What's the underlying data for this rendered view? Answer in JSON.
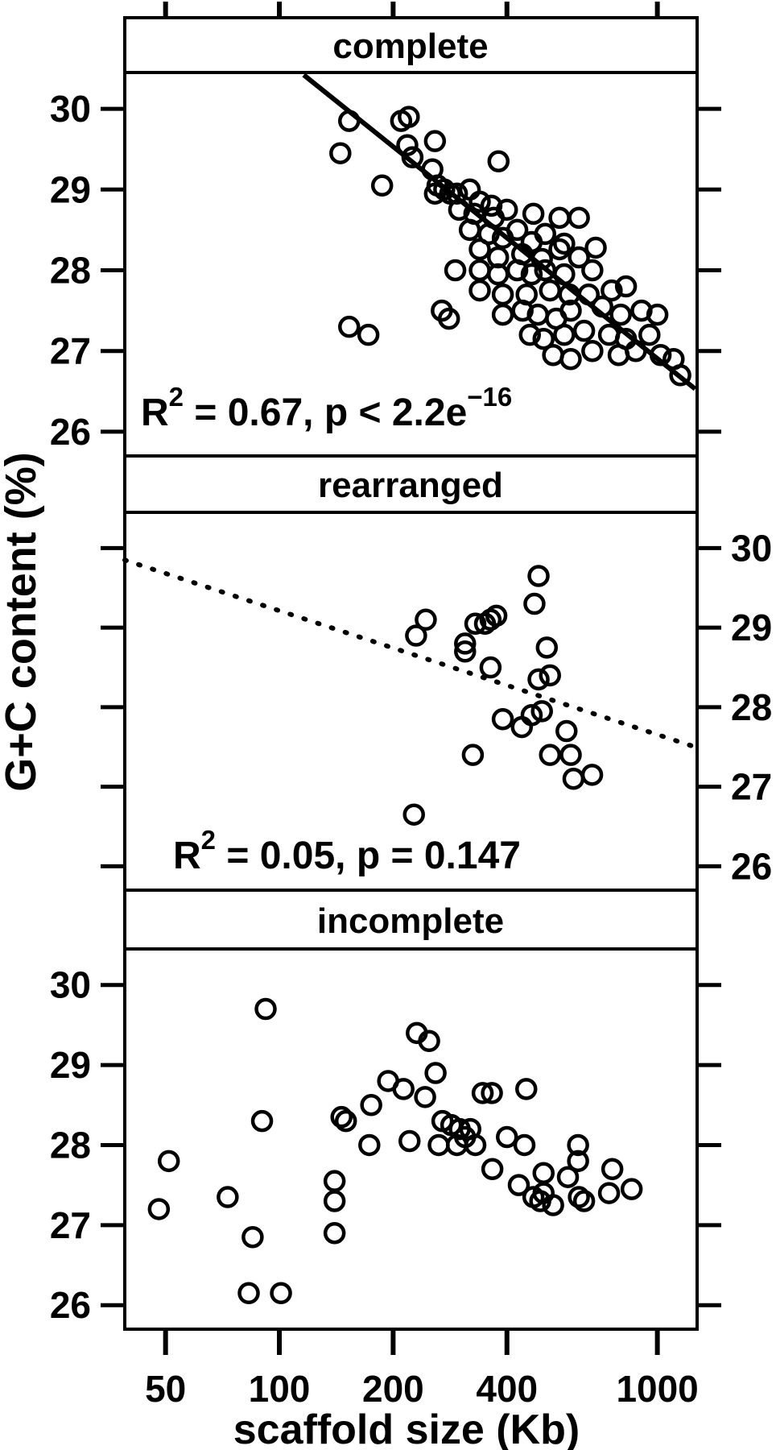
{
  "figure": {
    "x_axis_title": "scaffold size (Kb)",
    "y_axis_title": "G+C content (%)",
    "x_scale": "log",
    "x_ticks": [
      50,
      100,
      200,
      400,
      1000
    ],
    "y_ticks": [
      26,
      27,
      28,
      29,
      30
    ],
    "x_domain": [
      39,
      1274
    ],
    "y_domain": [
      25.7,
      30.45
    ],
    "colors": {
      "fg": "#000000",
      "bg": "#ffffff"
    }
  },
  "chart_data": [
    {
      "type": "scatter",
      "strip_label": "complete",
      "y_labels_side": "left",
      "annotation_text": "R2 = 0.67, p < 2.2e-16",
      "annotation_parts": [
        {
          "t": "R"
        },
        {
          "t": "2",
          "sup": true
        },
        {
          "t": " = 0.67, p < 2.2e"
        },
        {
          "t": "−16",
          "sup": true
        }
      ],
      "regression_line": {
        "style": "solid",
        "from": [
          116,
          30.42
        ],
        "to": [
          1259,
          26.53
        ]
      },
      "points": [
        [
          153,
          29.85
        ],
        [
          210,
          29.85
        ],
        [
          220,
          29.9
        ],
        [
          145,
          29.45
        ],
        [
          218,
          29.55
        ],
        [
          225,
          29.4
        ],
        [
          258,
          29.6
        ],
        [
          380,
          29.35
        ],
        [
          187,
          29.05
        ],
        [
          254,
          29.25
        ],
        [
          262,
          29.05
        ],
        [
          273,
          29.0
        ],
        [
          295,
          28.95
        ],
        [
          319,
          29.0
        ],
        [
          258,
          28.95
        ],
        [
          283,
          28.95
        ],
        [
          339,
          28.85
        ],
        [
          364,
          28.8
        ],
        [
          299,
          28.75
        ],
        [
          328,
          28.7
        ],
        [
          369,
          28.65
        ],
        [
          400,
          28.75
        ],
        [
          470,
          28.7
        ],
        [
          551,
          28.65
        ],
        [
          620,
          28.65
        ],
        [
          319,
          28.5
        ],
        [
          358,
          28.45
        ],
        [
          390,
          28.4
        ],
        [
          426,
          28.5
        ],
        [
          465,
          28.35
        ],
        [
          505,
          28.45
        ],
        [
          567,
          28.33
        ],
        [
          339,
          28.26
        ],
        [
          379,
          28.16
        ],
        [
          439,
          28.2
        ],
        [
          495,
          28.14
        ],
        [
          551,
          28.26
        ],
        [
          620,
          28.16
        ],
        [
          687,
          28.28
        ],
        [
          292,
          28.0
        ],
        [
          339,
          28.0
        ],
        [
          379,
          27.95
        ],
        [
          426,
          28.0
        ],
        [
          465,
          27.95
        ],
        [
          505,
          28.0
        ],
        [
          567,
          27.95
        ],
        [
          673,
          28.0
        ],
        [
          339,
          27.75
        ],
        [
          390,
          27.7
        ],
        [
          451,
          27.7
        ],
        [
          520,
          27.75
        ],
        [
          585,
          27.7
        ],
        [
          658,
          27.7
        ],
        [
          757,
          27.75
        ],
        [
          826,
          27.8
        ],
        [
          269,
          27.5
        ],
        [
          281,
          27.4
        ],
        [
          390,
          27.45
        ],
        [
          440,
          27.5
        ],
        [
          483,
          27.45
        ],
        [
          540,
          27.4
        ],
        [
          590,
          27.5
        ],
        [
          715,
          27.55
        ],
        [
          800,
          27.45
        ],
        [
          153,
          27.3
        ],
        [
          172,
          27.2
        ],
        [
          460,
          27.2
        ],
        [
          500,
          27.15
        ],
        [
          567,
          27.2
        ],
        [
          640,
          27.25
        ],
        [
          745,
          27.2
        ],
        [
          826,
          27.15
        ],
        [
          877,
          27.0
        ],
        [
          530,
          26.95
        ],
        [
          590,
          26.9
        ],
        [
          673,
          27.0
        ],
        [
          790,
          26.95
        ],
        [
          908,
          27.5
        ],
        [
          1000,
          27.45
        ],
        [
          953,
          27.2
        ],
        [
          1020,
          26.95
        ],
        [
          1104,
          26.9
        ],
        [
          1150,
          26.7
        ]
      ]
    },
    {
      "type": "scatter",
      "strip_label": "rearranged",
      "y_labels_side": "right",
      "annotation_text": "R2 = 0.05, p = 0.147",
      "annotation_parts": [
        {
          "t": "R"
        },
        {
          "t": "2",
          "sup": true
        },
        {
          "t": " = 0.05, p = 0.147"
        }
      ],
      "regression_line": {
        "style": "dotted",
        "from": [
          39,
          29.85
        ],
        "to": [
          1259,
          27.5
        ]
      },
      "points": [
        [
          485,
          29.65
        ],
        [
          473,
          29.3
        ],
        [
          244,
          29.1
        ],
        [
          230,
          28.9
        ],
        [
          330,
          29.05
        ],
        [
          350,
          29.05
        ],
        [
          362,
          29.1
        ],
        [
          375,
          29.15
        ],
        [
          310,
          28.8
        ],
        [
          310,
          28.7
        ],
        [
          510,
          28.75
        ],
        [
          362,
          28.5
        ],
        [
          485,
          28.35
        ],
        [
          520,
          28.4
        ],
        [
          390,
          27.85
        ],
        [
          438,
          27.75
        ],
        [
          465,
          27.9
        ],
        [
          495,
          27.95
        ],
        [
          575,
          27.7
        ],
        [
          325,
          27.4
        ],
        [
          520,
          27.4
        ],
        [
          590,
          27.4
        ],
        [
          600,
          27.1
        ],
        [
          672,
          27.15
        ],
        [
          227,
          26.65
        ]
      ]
    },
    {
      "type": "scatter",
      "strip_label": "incomplete",
      "y_labels_side": "left",
      "annotation_text": "",
      "annotation_parts": [],
      "regression_line": null,
      "points": [
        [
          92,
          29.7
        ],
        [
          231,
          29.4
        ],
        [
          249,
          29.3
        ],
        [
          259,
          28.9
        ],
        [
          194,
          28.8
        ],
        [
          213,
          28.7
        ],
        [
          243,
          28.6
        ],
        [
          175,
          28.5
        ],
        [
          345,
          28.65
        ],
        [
          365,
          28.65
        ],
        [
          450,
          28.7
        ],
        [
          90,
          28.3
        ],
        [
          146,
          28.35
        ],
        [
          150,
          28.3
        ],
        [
          270,
          28.3
        ],
        [
          285,
          28.25
        ],
        [
          300,
          28.2
        ],
        [
          320,
          28.2
        ],
        [
          310,
          28.1
        ],
        [
          295,
          28.0
        ],
        [
          330,
          28.0
        ],
        [
          173,
          28.0
        ],
        [
          221,
          28.05
        ],
        [
          264,
          28.0
        ],
        [
          400,
          28.1
        ],
        [
          445,
          28.0
        ],
        [
          617,
          28.0
        ],
        [
          617,
          27.8
        ],
        [
          51,
          27.8
        ],
        [
          48,
          27.2
        ],
        [
          73,
          27.35
        ],
        [
          85,
          26.85
        ],
        [
          83,
          26.15
        ],
        [
          101,
          26.15
        ],
        [
          140,
          27.55
        ],
        [
          140,
          27.3
        ],
        [
          140,
          26.9
        ],
        [
          500,
          27.65
        ],
        [
          500,
          27.4
        ],
        [
          470,
          27.35
        ],
        [
          490,
          27.3
        ],
        [
          430,
          27.5
        ],
        [
          366,
          27.7
        ],
        [
          530,
          27.25
        ],
        [
          640,
          27.3
        ],
        [
          745,
          27.4
        ],
        [
          760,
          27.7
        ],
        [
          855,
          27.45
        ],
        [
          580,
          27.6
        ],
        [
          620,
          27.35
        ]
      ]
    }
  ]
}
